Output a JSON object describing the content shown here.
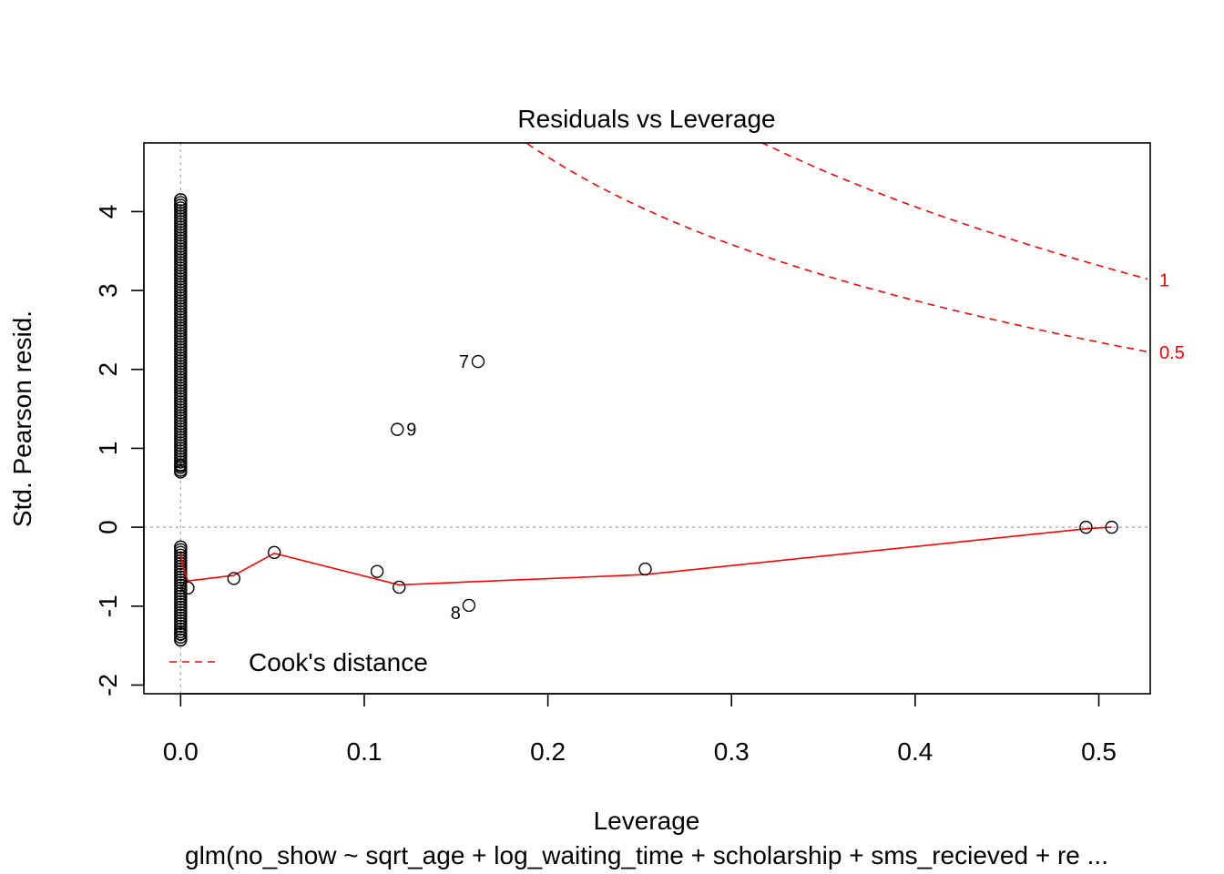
{
  "chart_data": {
    "type": "scatter",
    "title": "Residuals vs Leverage",
    "xlabel": "Leverage",
    "ylabel": "Std. Pearson resid.",
    "subtitle": "glm(no_show ~ sqrt_age + log_waiting_time + scholarship + sms_recieved + re ...",
    "xlim": [
      -0.02,
      0.528
    ],
    "ylim": [
      -2.11,
      4.87
    ],
    "x_ticks": [
      0.0,
      0.1,
      0.2,
      0.3,
      0.4,
      0.5
    ],
    "x_tick_labels": [
      "0.0",
      "0.1",
      "0.2",
      "0.3",
      "0.4",
      "0.5"
    ],
    "y_ticks": [
      -2,
      -1,
      0,
      1,
      2,
      3,
      4
    ],
    "y_tick_labels": [
      "-2",
      "-1",
      "0",
      "1",
      "2",
      "3",
      "4"
    ],
    "reference_lines": {
      "h": 0,
      "v": 0,
      "color": "#b0b0b0",
      "style": "dotted"
    },
    "dense_columns": [
      {
        "x": 0.0,
        "y_min": 0.7,
        "y_max": 4.15
      },
      {
        "x": 0.0,
        "y_min": -1.43,
        "y_max": -0.25
      }
    ],
    "points": [
      {
        "x": 0.0,
        "y": 4.15
      },
      {
        "x": 0.0,
        "y": 4.08
      },
      {
        "x": 0.0,
        "y": 0.7
      },
      {
        "x": 0.0,
        "y": 0.78
      },
      {
        "x": 0.0,
        "y": -0.25
      },
      {
        "x": 0.0,
        "y": -1.43
      },
      {
        "x": 0.0,
        "y": -1.35
      },
      {
        "x": 0.004,
        "y": -0.77
      },
      {
        "x": 0.029,
        "y": -0.65
      },
      {
        "x": 0.051,
        "y": -0.32
      },
      {
        "x": 0.107,
        "y": -0.56
      },
      {
        "x": 0.118,
        "y": 1.24,
        "label": "9"
      },
      {
        "x": 0.119,
        "y": -0.76
      },
      {
        "x": 0.157,
        "y": -0.99,
        "label": "8"
      },
      {
        "x": 0.162,
        "y": 2.1,
        "label": "7"
      },
      {
        "x": 0.253,
        "y": -0.53
      },
      {
        "x": 0.493,
        "y": 0.0
      },
      {
        "x": 0.507,
        "y": 0.0
      }
    ],
    "smooth_line": {
      "color": "#ff0000",
      "x": [
        0.0,
        0.0015,
        0.004,
        0.029,
        0.051,
        0.119,
        0.253,
        0.493,
        0.507
      ],
      "y": [
        -0.32,
        -0.52,
        -0.68,
        -0.61,
        -0.33,
        -0.73,
        -0.6,
        -0.02,
        0.0
      ]
    },
    "cooks_distance": {
      "color": "#ff0000",
      "contours": [
        {
          "label": "0.5",
          "value": 0.5
        },
        {
          "label": "1",
          "value": 1
        }
      ],
      "p": 11
    },
    "legend": {
      "entries": [
        "Cook's distance"
      ],
      "position": "bottom-left",
      "line_color": "#ff0000",
      "line_style": "dashed"
    }
  }
}
